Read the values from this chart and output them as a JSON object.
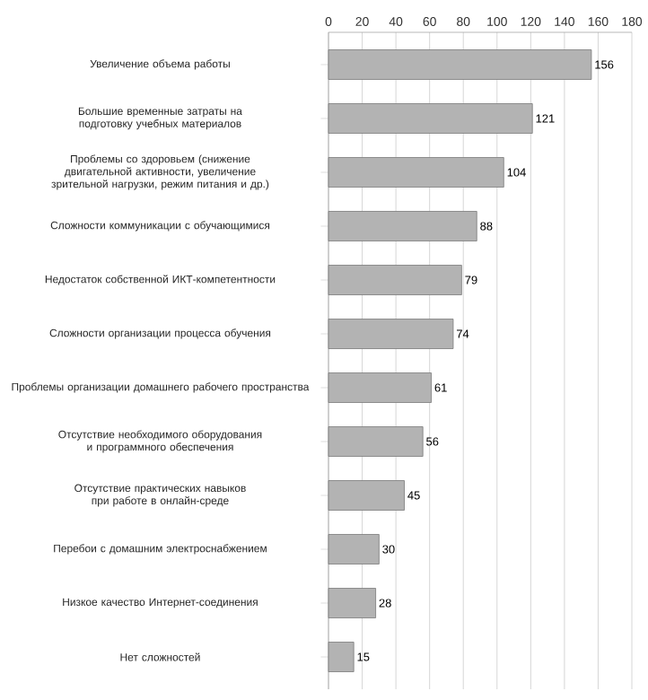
{
  "chart_data": {
    "type": "bar",
    "orientation": "horizontal",
    "categories": [
      "Увеличение объема работы",
      "Большие временные затраты на подготовку учебных материалов",
      "Проблемы со здоровьем (снижение двигательной активности, увеличение зрительной нагрузки, режим питания и др.)",
      "Сложности коммуникации с обучающимися",
      "Недостаток собственной ИКТ-компетентности",
      "Сложности организации процесса обучения",
      "Проблемы организации домашнего рабочего пространства",
      "Отсутствие необходимого оборудования и программного обеспечения",
      "Отсутствие практических навыков при работе в онлайн-среде",
      "Перебои с домашним электроснабжением",
      "Низкое качество Интернет-соединения",
      "Нет сложностей"
    ],
    "values": [
      156,
      121,
      104,
      88,
      79,
      74,
      61,
      56,
      45,
      30,
      28,
      15
    ],
    "color": "#b3b3b3",
    "xlim": [
      0,
      180
    ],
    "xticks": [
      0,
      20,
      40,
      60,
      80,
      100,
      120,
      140,
      160,
      180
    ],
    "grid": "x",
    "data_labels": true
  }
}
